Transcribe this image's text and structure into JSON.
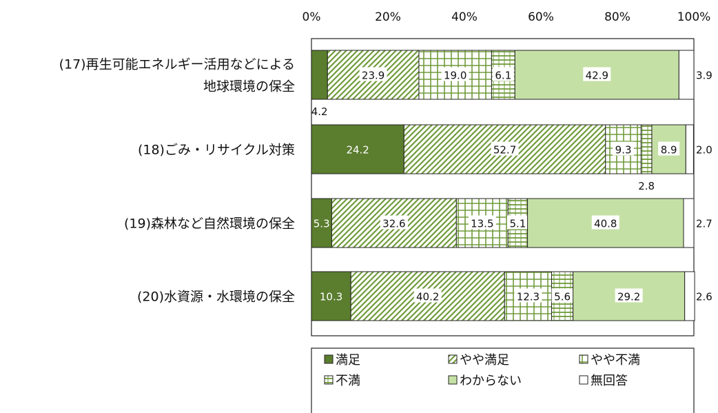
{
  "chart_data": {
    "type": "bar",
    "orientation": "horizontal",
    "stacked": true,
    "x_ticks": [
      "0%",
      "20%",
      "40%",
      "60%",
      "80%",
      "100%"
    ],
    "xlim": [
      0,
      100
    ],
    "categories": [
      [
        "(17)再生可能エネルギー活用などによる",
        "地球環境の保全"
      ],
      [
        "(18)ごみ・リサイクル対策"
      ],
      [
        "(19)森林など自然環境の保全"
      ],
      [
        "(20)水資源・水環境の保全"
      ]
    ],
    "series": [
      {
        "name": "満足",
        "values": [
          4.2,
          24.2,
          5.3,
          10.3
        ],
        "color": "#5a7d2e",
        "pattern": "solid"
      },
      {
        "name": "やや満足",
        "values": [
          23.9,
          52.7,
          32.6,
          40.2
        ],
        "color": "#6f9a3a",
        "pattern": "diagonal"
      },
      {
        "name": "やや不満",
        "values": [
          19.0,
          9.3,
          13.5,
          12.3
        ],
        "color": "#6f9a3a",
        "pattern": "grid"
      },
      {
        "name": "不満",
        "values": [
          6.1,
          2.8,
          5.1,
          5.6
        ],
        "color": "#6f9a3a",
        "pattern": "hlines"
      },
      {
        "name": "わからない",
        "values": [
          42.9,
          8.9,
          40.8,
          29.2
        ],
        "color": "#c5e0a5",
        "pattern": "solid"
      },
      {
        "name": "無回答",
        "values": [
          3.9,
          2.0,
          2.7,
          2.6
        ],
        "color": "#ffffff",
        "pattern": "solid"
      }
    ],
    "labels": [
      [
        "",
        "23.9",
        "19.0",
        "6.1",
        "42.9",
        "3.9"
      ],
      [
        "24.2",
        "52.7",
        "9.3",
        "",
        "8.9",
        "2.0"
      ],
      [
        "5.3",
        "32.6",
        "13.5",
        "5.1",
        "40.8",
        "2.7"
      ],
      [
        "10.3",
        "40.2",
        "12.3",
        "5.6",
        "29.2",
        "2.6"
      ]
    ],
    "below_labels": [
      {
        "row": 0,
        "series": 0,
        "text": "4.2"
      },
      {
        "row": 1,
        "series": 3,
        "text": "2.8"
      }
    ],
    "legend_position": "bottom",
    "grid": false
  }
}
